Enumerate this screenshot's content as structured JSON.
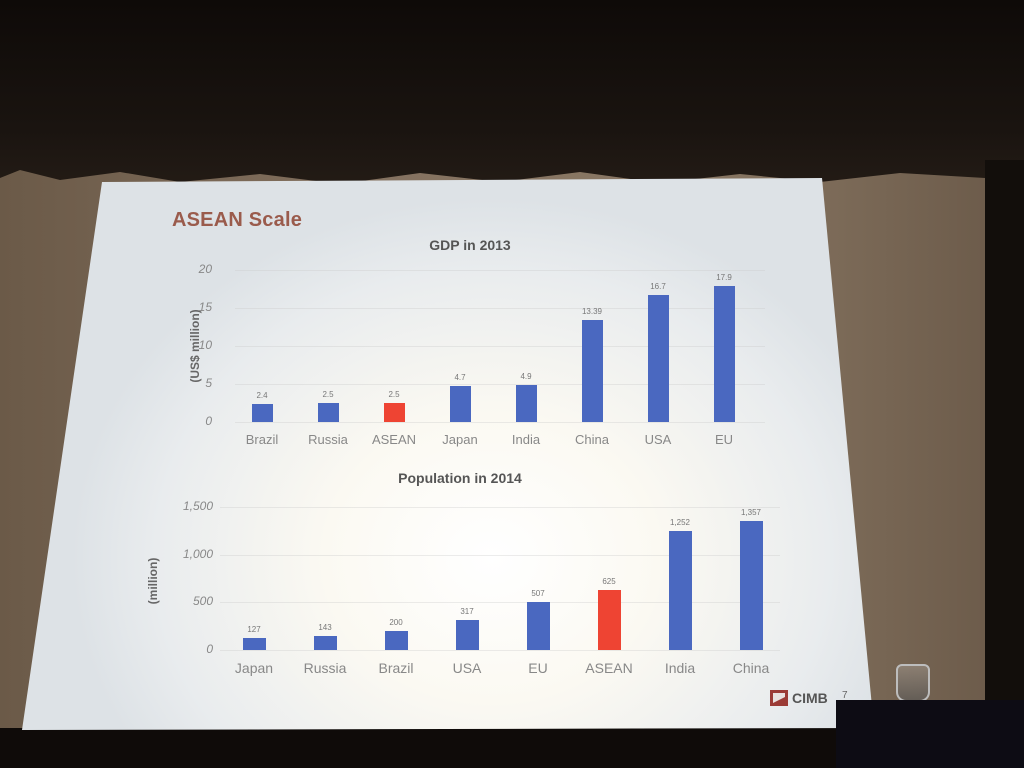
{
  "slide": {
    "title": "ASEAN Scale",
    "logo_text": "CIMB",
    "page_number": "7"
  },
  "chart_data": [
    {
      "type": "bar",
      "title": "GDP in 2013",
      "xlabel": "",
      "ylabel": "(US$ million)",
      "ylim": [
        0,
        20
      ],
      "yticks": [
        "0",
        "5",
        "10",
        "15",
        "20"
      ],
      "grid": true,
      "categories": [
        "Brazil",
        "Russia",
        "ASEAN",
        "Japan",
        "India",
        "China",
        "USA",
        "EU"
      ],
      "values": [
        2.4,
        2.5,
        2.5,
        4.7,
        4.9,
        13.39,
        16.7,
        17.9
      ],
      "value_labels": [
        "2.4",
        "2.5",
        "2.5",
        "4.7",
        "4.9",
        "13.39",
        "16.7",
        "17.9"
      ],
      "highlight": "ASEAN",
      "colors": {
        "default": "#4a68c0",
        "highlight": "#ee4433"
      }
    },
    {
      "type": "bar",
      "title": "Population in 2014",
      "xlabel": "",
      "ylabel": "(million)",
      "ylim": [
        0,
        1500
      ],
      "yticks": [
        "0",
        "500",
        "1,000",
        "1,500"
      ],
      "grid": true,
      "categories": [
        "Japan",
        "Russia",
        "Brazil",
        "USA",
        "EU",
        "ASEAN",
        "India",
        "China"
      ],
      "values": [
        127,
        143,
        200,
        317,
        507,
        625,
        1252,
        1357
      ],
      "value_labels": [
        "127",
        "143",
        "200",
        "317",
        "507",
        "625",
        "1,252",
        "1,357"
      ],
      "highlight": "ASEAN",
      "colors": {
        "default": "#4a68c0",
        "highlight": "#ee4433"
      }
    }
  ]
}
